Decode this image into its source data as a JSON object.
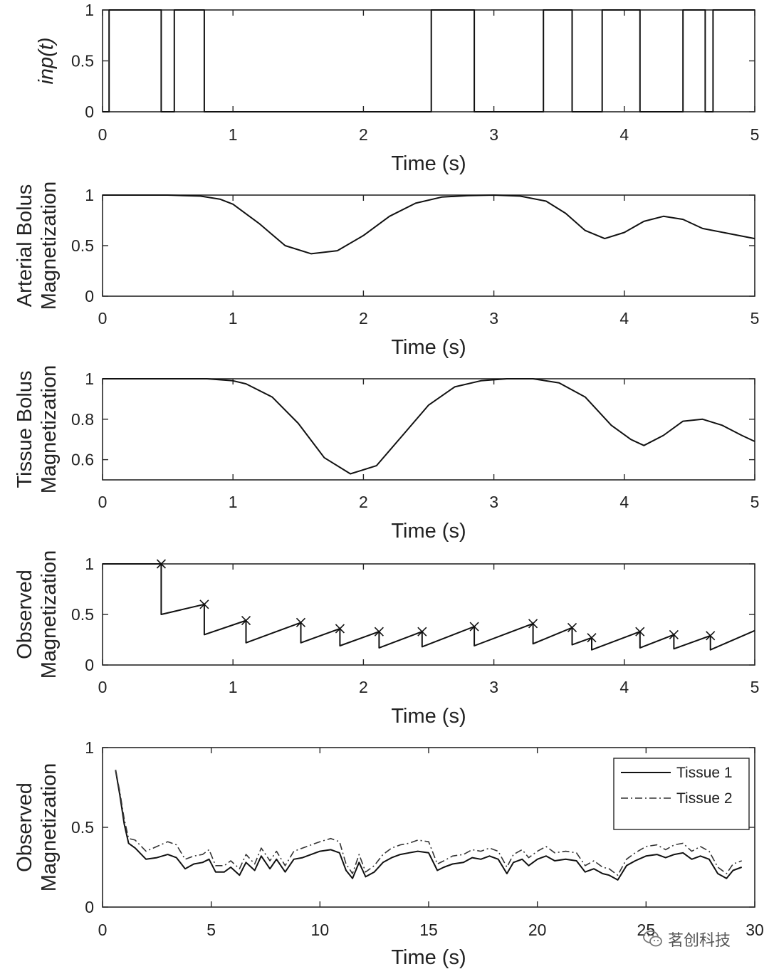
{
  "chart_data": [
    {
      "type": "line",
      "id": "inp",
      "xlabel": "Time (s)",
      "ylabel": [
        "inp(t)"
      ],
      "ylabel_italic": true,
      "xlim": [
        0,
        5
      ],
      "ylim": [
        0,
        1
      ],
      "xticks": [
        0,
        1,
        2,
        3,
        4,
        5
      ],
      "yticks": [
        0,
        0.5,
        1
      ],
      "step": true,
      "series": [
        {
          "name": "inp(t)",
          "style": "solid",
          "x": [
            0,
            0.05,
            0.45,
            0.55,
            0.78,
            2.52,
            2.85,
            3.38,
            3.6,
            3.83,
            4.12,
            4.45,
            4.62,
            4.68
          ],
          "y": [
            0,
            1,
            0,
            1,
            0,
            1,
            0,
            1,
            0,
            1,
            0,
            1,
            0,
            1
          ]
        }
      ]
    },
    {
      "type": "line",
      "id": "arterial",
      "xlabel": "Time (s)",
      "ylabel": [
        "Arterial Bolus",
        "Magnetization"
      ],
      "xlim": [
        0,
        5
      ],
      "ylim": [
        0,
        1
      ],
      "xticks": [
        0,
        1,
        2,
        3,
        4,
        5
      ],
      "yticks": [
        0,
        0.5,
        1
      ],
      "series": [
        {
          "name": "Arterial Bolus Magnetization",
          "style": "solid",
          "x": [
            0,
            0.5,
            0.75,
            0.9,
            1.0,
            1.2,
            1.4,
            1.6,
            1.8,
            2.0,
            2.2,
            2.4,
            2.6,
            2.8,
            3.0,
            3.2,
            3.4,
            3.55,
            3.7,
            3.85,
            4.0,
            4.15,
            4.3,
            4.45,
            4.6,
            4.8,
            5.0
          ],
          "y": [
            1,
            1,
            0.99,
            0.96,
            0.91,
            0.72,
            0.5,
            0.42,
            0.45,
            0.6,
            0.79,
            0.92,
            0.98,
            0.995,
            1,
            0.99,
            0.94,
            0.82,
            0.65,
            0.57,
            0.63,
            0.74,
            0.79,
            0.76,
            0.67,
            0.62,
            0.57
          ]
        }
      ]
    },
    {
      "type": "line",
      "id": "tissue",
      "xlabel": "Time (s)",
      "ylabel": [
        "Tissue Bolus",
        "Magnetization"
      ],
      "xlim": [
        0,
        5
      ],
      "ylim": [
        0.5,
        1
      ],
      "xticks": [
        0,
        1,
        2,
        3,
        4,
        5
      ],
      "yticks": [
        0.6,
        0.8,
        1
      ],
      "series": [
        {
          "name": "Tissue Bolus Magnetization",
          "style": "solid",
          "x": [
            0,
            0.8,
            1.0,
            1.1,
            1.3,
            1.5,
            1.7,
            1.9,
            2.1,
            2.3,
            2.5,
            2.7,
            2.9,
            3.1,
            3.3,
            3.5,
            3.7,
            3.9,
            4.05,
            4.15,
            4.3,
            4.45,
            4.6,
            4.75,
            4.9,
            5.0
          ],
          "y": [
            1,
            1,
            0.99,
            0.975,
            0.91,
            0.78,
            0.61,
            0.53,
            0.57,
            0.72,
            0.87,
            0.96,
            0.99,
            1,
            1,
            0.98,
            0.91,
            0.77,
            0.7,
            0.67,
            0.72,
            0.79,
            0.8,
            0.77,
            0.72,
            0.69
          ]
        }
      ]
    },
    {
      "type": "line",
      "id": "observed",
      "xlabel": "Time (s)",
      "ylabel": [
        "Observed",
        "Magnetization"
      ],
      "xlim": [
        0,
        5
      ],
      "ylim": [
        0,
        1
      ],
      "xticks": [
        0,
        1,
        2,
        3,
        4,
        5
      ],
      "yticks": [
        0,
        0.5,
        1
      ],
      "series": [
        {
          "name": "Observed Magnetization",
          "style": "solid",
          "x": [
            0,
            0.45,
            0.45,
            0.78,
            0.78,
            1.1,
            1.1,
            1.52,
            1.52,
            1.82,
            1.82,
            2.12,
            2.12,
            2.45,
            2.45,
            2.85,
            2.85,
            3.3,
            3.3,
            3.6,
            3.6,
            3.75,
            3.75,
            4.12,
            4.12,
            4.38,
            4.38,
            4.66,
            4.66,
            5.0
          ],
          "y": [
            1,
            1,
            0.5,
            0.6,
            0.3,
            0.44,
            0.22,
            0.42,
            0.22,
            0.36,
            0.19,
            0.33,
            0.17,
            0.33,
            0.18,
            0.38,
            0.19,
            0.41,
            0.21,
            0.37,
            0.2,
            0.27,
            0.15,
            0.33,
            0.17,
            0.3,
            0.16,
            0.29,
            0.15,
            0.34
          ]
        }
      ],
      "markers": {
        "symbol": "x",
        "x": [
          0.45,
          0.78,
          1.1,
          1.52,
          1.82,
          2.12,
          2.45,
          2.85,
          3.3,
          3.6,
          3.75,
          4.12,
          4.38,
          4.66
        ],
        "y": [
          1,
          0.6,
          0.44,
          0.42,
          0.36,
          0.33,
          0.33,
          0.38,
          0.41,
          0.37,
          0.27,
          0.33,
          0.3,
          0.29
        ]
      }
    },
    {
      "type": "line",
      "id": "observed-long",
      "xlabel": "Time (s)",
      "ylabel": [
        "Observed",
        "Magnetization"
      ],
      "xlim": [
        0,
        30
      ],
      "ylim": [
        0,
        1
      ],
      "xticks": [
        0,
        5,
        10,
        15,
        20,
        25,
        30
      ],
      "yticks": [
        0,
        0.5,
        1
      ],
      "legend": {
        "location": "top-right",
        "entries": [
          "Tissue 1",
          "Tissue 2"
        ]
      },
      "series": [
        {
          "name": "Tissue 1",
          "style": "solid",
          "x": [
            0.6,
            0.8,
            1.0,
            1.2,
            1.5,
            2.0,
            2.5,
            3.0,
            3.4,
            3.8,
            4.2,
            4.6,
            4.9,
            5.2,
            5.6,
            5.9,
            6.3,
            6.6,
            7.0,
            7.3,
            7.7,
            8.0,
            8.4,
            8.8,
            9.2,
            9.6,
            10.0,
            10.5,
            10.9,
            11.2,
            11.5,
            11.8,
            12.1,
            12.5,
            12.9,
            13.3,
            13.7,
            14.1,
            14.5,
            15.0,
            15.4,
            15.7,
            16.1,
            16.6,
            17.0,
            17.4,
            17.8,
            18.2,
            18.6,
            18.9,
            19.3,
            19.6,
            20.0,
            20.4,
            20.8,
            21.3,
            21.8,
            22.2,
            22.6,
            23.0,
            23.3,
            23.7,
            24.1,
            24.5,
            25.0,
            25.5,
            25.9,
            26.3,
            26.7,
            27.1,
            27.5,
            27.9,
            28.3,
            28.7,
            29.0,
            29.4
          ],
          "y": [
            0.86,
            0.7,
            0.52,
            0.4,
            0.37,
            0.3,
            0.31,
            0.33,
            0.31,
            0.24,
            0.27,
            0.28,
            0.3,
            0.22,
            0.22,
            0.25,
            0.2,
            0.28,
            0.23,
            0.32,
            0.24,
            0.3,
            0.22,
            0.3,
            0.31,
            0.33,
            0.35,
            0.36,
            0.34,
            0.23,
            0.18,
            0.28,
            0.19,
            0.22,
            0.28,
            0.31,
            0.33,
            0.34,
            0.35,
            0.34,
            0.23,
            0.25,
            0.27,
            0.28,
            0.31,
            0.3,
            0.32,
            0.3,
            0.21,
            0.28,
            0.3,
            0.26,
            0.3,
            0.32,
            0.29,
            0.3,
            0.29,
            0.22,
            0.24,
            0.21,
            0.2,
            0.17,
            0.26,
            0.29,
            0.32,
            0.33,
            0.31,
            0.33,
            0.34,
            0.3,
            0.32,
            0.3,
            0.21,
            0.18,
            0.23,
            0.25
          ]
        },
        {
          "name": "Tissue 2",
          "style": "dashdot",
          "x": [
            0.6,
            0.8,
            1.0,
            1.2,
            1.5,
            2.0,
            2.5,
            3.0,
            3.4,
            3.8,
            4.2,
            4.6,
            4.9,
            5.2,
            5.6,
            5.9,
            6.3,
            6.6,
            7.0,
            7.3,
            7.7,
            8.0,
            8.4,
            8.8,
            9.2,
            9.6,
            10.0,
            10.5,
            10.9,
            11.2,
            11.5,
            11.8,
            12.1,
            12.5,
            12.9,
            13.3,
            13.7,
            14.1,
            14.5,
            15.0,
            15.4,
            15.7,
            16.1,
            16.6,
            17.0,
            17.4,
            17.8,
            18.2,
            18.6,
            18.9,
            19.3,
            19.6,
            20.0,
            20.4,
            20.8,
            21.3,
            21.8,
            22.2,
            22.6,
            23.0,
            23.3,
            23.7,
            24.1,
            24.5,
            25.0,
            25.5,
            25.9,
            26.3,
            26.7,
            27.1,
            27.5,
            27.9,
            28.3,
            28.7,
            29.0,
            29.4
          ],
          "y": [
            0.86,
            0.72,
            0.55,
            0.43,
            0.42,
            0.35,
            0.38,
            0.41,
            0.39,
            0.3,
            0.32,
            0.33,
            0.36,
            0.26,
            0.26,
            0.29,
            0.24,
            0.33,
            0.27,
            0.37,
            0.29,
            0.35,
            0.26,
            0.35,
            0.37,
            0.39,
            0.41,
            0.43,
            0.41,
            0.27,
            0.21,
            0.33,
            0.22,
            0.26,
            0.33,
            0.37,
            0.39,
            0.4,
            0.42,
            0.41,
            0.27,
            0.29,
            0.32,
            0.33,
            0.36,
            0.35,
            0.37,
            0.35,
            0.25,
            0.33,
            0.36,
            0.31,
            0.35,
            0.38,
            0.34,
            0.35,
            0.34,
            0.26,
            0.29,
            0.25,
            0.24,
            0.2,
            0.3,
            0.34,
            0.38,
            0.39,
            0.36,
            0.39,
            0.4,
            0.35,
            0.38,
            0.35,
            0.25,
            0.21,
            0.27,
            0.29
          ]
        }
      ]
    }
  ],
  "watermark": {
    "text": "茗创科技",
    "icon": "wechat-icon"
  }
}
